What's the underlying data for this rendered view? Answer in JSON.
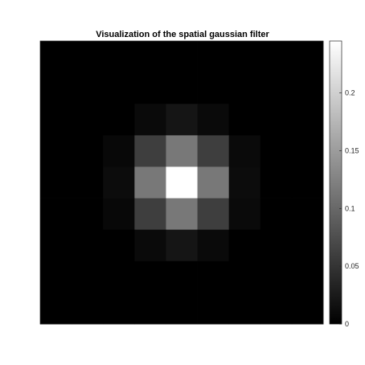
{
  "chart_data": {
    "type": "heatmap",
    "title": "Visualization of the spatial gaussian filter",
    "xlabel": "",
    "ylabel": "",
    "colormap": "gray",
    "clim": [
      0,
      0.245
    ],
    "grid_size": [
      9,
      9
    ],
    "values": [
      [
        0,
        0,
        0,
        0,
        0,
        0,
        0,
        0,
        0
      ],
      [
        0,
        0,
        0,
        0,
        0,
        0,
        0,
        0,
        0
      ],
      [
        0,
        0,
        0,
        0.01,
        0.02,
        0.01,
        0,
        0,
        0
      ],
      [
        0,
        0,
        0.008,
        0.06,
        0.115,
        0.06,
        0.01,
        0,
        0
      ],
      [
        0,
        0,
        0.012,
        0.115,
        0.245,
        0.115,
        0.012,
        0,
        0
      ],
      [
        0,
        0,
        0.008,
        0.06,
        0.115,
        0.06,
        0.01,
        0,
        0
      ],
      [
        0,
        0,
        0,
        0.01,
        0.02,
        0.01,
        0,
        0,
        0
      ],
      [
        0,
        0,
        0,
        0,
        0,
        0,
        0,
        0,
        0
      ],
      [
        0,
        0,
        0,
        0,
        0,
        0,
        0,
        0,
        0
      ]
    ],
    "colorbar": {
      "ticks": [
        0,
        0.05,
        0.1,
        0.15,
        0.2
      ],
      "tick_labels": [
        "0",
        "0.05",
        "0.1",
        "0.15",
        "0.2"
      ]
    }
  },
  "colors": {
    "background": "#ffffff",
    "axis": "#262626"
  }
}
